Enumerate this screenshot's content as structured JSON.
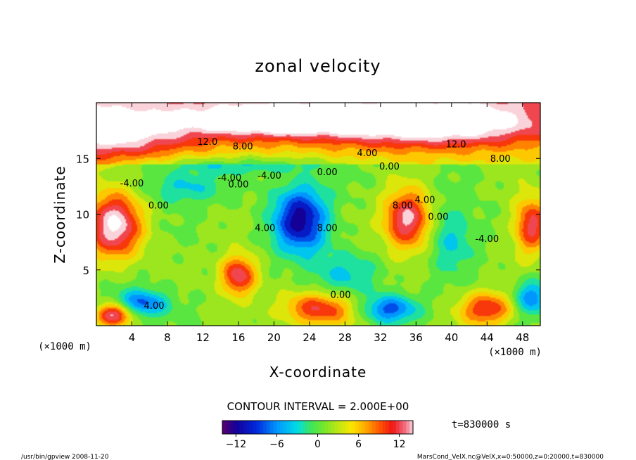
{
  "chart_data": {
    "type": "heatmap",
    "title": "zonal velocity",
    "xlabel": "X-coordinate",
    "ylabel": "Z-coordinate",
    "x_unit_left": "(×1000 m)",
    "x_unit_right": "(×1000 m)",
    "xlim": [
      0,
      50
    ],
    "ylim": [
      0,
      20
    ],
    "x_ticks": [
      "4",
      "8",
      "12",
      "16",
      "20",
      "24",
      "28",
      "32",
      "36",
      "40",
      "44",
      "48"
    ],
    "y_ticks": [
      "5",
      "10",
      "15"
    ],
    "contour_interval_label": "CONTOUR INTERVAL = 2.000E+00",
    "time_label": "t=830000 s",
    "colorbar": {
      "range": [
        -14,
        14
      ],
      "ticks": [
        "-12",
        "-6",
        "0",
        "6",
        "12"
      ]
    },
    "contour_labels": [
      "12.0",
      "8.00",
      "4.00",
      "0.00",
      "-4.00",
      "0.00",
      "-4.00",
      "0.00",
      "-4.00",
      "8.00",
      "4.00",
      "12.0",
      "8.00",
      "4.00",
      "0.00",
      "8.00",
      "-4.00",
      "0.00",
      "4.00",
      "0.00"
    ],
    "features": [
      {
        "x": 0,
        "z": 17.5,
        "sx": 10,
        "sz": 2.5,
        "v": 12
      },
      {
        "x": 20,
        "z": 18.5,
        "sx": 10,
        "sz": 1.5,
        "v": 13
      },
      {
        "x": 38,
        "z": 18.2,
        "sx": 12,
        "sz": 2,
        "v": 13
      },
      {
        "x": 2,
        "z": 9,
        "sx": 3,
        "sz": 3,
        "v": 14
      },
      {
        "x": 16,
        "z": 4.5,
        "sx": 2,
        "sz": 1.8,
        "v": 12
      },
      {
        "x": 35,
        "z": 9.5,
        "sx": 2.6,
        "sz": 2.6,
        "v": 13
      },
      {
        "x": 25,
        "z": 1.5,
        "sx": 4,
        "sz": 1.5,
        "v": 10
      },
      {
        "x": 44,
        "z": 1.5,
        "sx": 3,
        "sz": 1.5,
        "v": 10
      },
      {
        "x": 49,
        "z": 9,
        "sx": 2,
        "sz": 2.5,
        "v": 11
      },
      {
        "x": 2,
        "z": 1,
        "sx": 2,
        "sz": 1,
        "v": 13
      },
      {
        "x": 23,
        "z": 9.5,
        "sx": 3,
        "sz": 3,
        "v": -13
      },
      {
        "x": 10,
        "z": 12.5,
        "sx": 4,
        "sz": 1.5,
        "v": -5
      },
      {
        "x": 40,
        "z": 8,
        "sx": 2.5,
        "sz": 3,
        "v": -5
      },
      {
        "x": 5,
        "z": 2,
        "sx": 3,
        "sz": 1.2,
        "v": -9
      },
      {
        "x": 33,
        "z": 1.5,
        "sx": 3,
        "sz": 1.2,
        "v": -9
      },
      {
        "x": 49,
        "z": 2.5,
        "sx": 2,
        "sz": 1.5,
        "v": -8
      },
      {
        "x": 28,
        "z": 4.5,
        "sx": 4,
        "sz": 2,
        "v": -4
      },
      {
        "x": 16,
        "z": 14.5,
        "sx": 10,
        "sz": 0.8,
        "v": -4
      }
    ],
    "footer_left": "/usr/bin/gpview   2008-11-20",
    "footer_right": "MarsCond_VelX.nc@VelX,x=0:50000,z=0:20000,t=830000"
  }
}
